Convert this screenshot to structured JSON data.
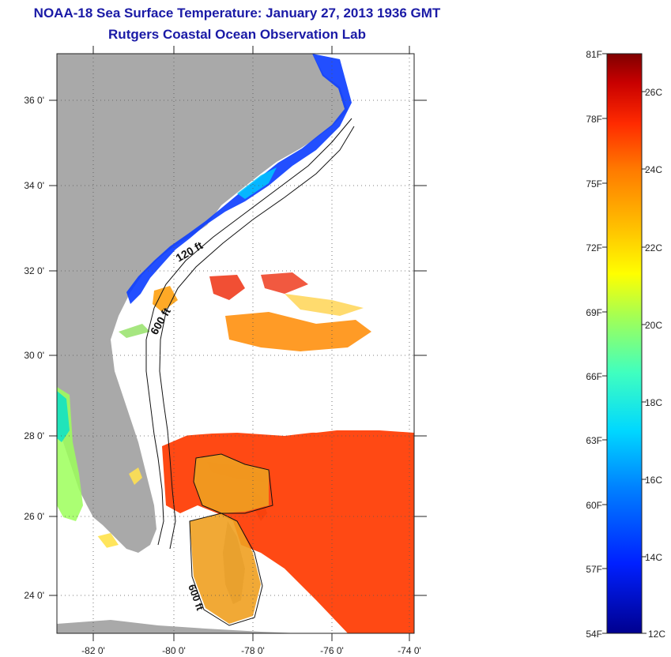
{
  "header": {
    "title": "NOAA-18 Sea Surface Temperature:  January 27, 2013 1936 GMT",
    "subtitle": "Rutgers Coastal Ocean Observation Lab"
  },
  "map": {
    "lat_labels": [
      "36 0'",
      "34 0'",
      "32 0'",
      "30 0'",
      "28 0'",
      "26 0'",
      "24 0'"
    ],
    "lon_labels": [
      "-82 0'",
      "-80 0'",
      "-78 0'",
      "-76 0'",
      "-74 0'"
    ],
    "contour_labels": [
      "120 ft",
      "600 ft",
      "600 ft"
    ],
    "colors": {
      "land": "#a9a9a9",
      "cloud": "#ffffff",
      "grid": "#555555"
    }
  },
  "colorbar": {
    "f_labels": [
      "81F",
      "78F",
      "75F",
      "72F",
      "69F",
      "66F",
      "63F",
      "60F",
      "57F",
      "54F"
    ],
    "c_labels": [
      "26C",
      "24C",
      "22C",
      "20C",
      "18C",
      "16C",
      "14C",
      "12C"
    ],
    "colormap": [
      "#7f0000",
      "#c80000",
      "#ff2a00",
      "#ff7a00",
      "#ffc000",
      "#ffff00",
      "#a8ff50",
      "#40ffbf",
      "#00d8ff",
      "#0080ff",
      "#0020ff",
      "#00008f"
    ]
  }
}
